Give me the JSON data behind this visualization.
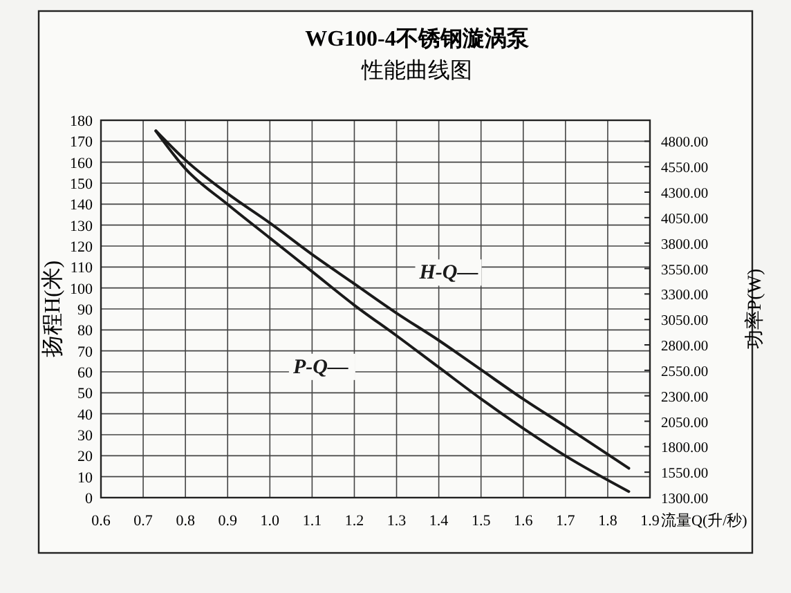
{
  "chart_data": {
    "type": "line",
    "title": "WG100-4不锈钢漩涡泵",
    "subtitle": "性能曲线图",
    "xlabel": "流量Q(升/秒)",
    "ylabel": "扬程H(米)",
    "y2label": "功率P(W)",
    "xlim": [
      0.6,
      1.9
    ],
    "xticks": [
      {
        "value": 0.6,
        "label": "0.6"
      },
      {
        "value": 0.7,
        "label": "0.7"
      },
      {
        "value": 0.8,
        "label": "0.8"
      },
      {
        "value": 0.9,
        "label": "0.9"
      },
      {
        "value": 1.0,
        "label": "1.0"
      },
      {
        "value": 1.1,
        "label": "1.1"
      },
      {
        "value": 1.2,
        "label": "1.2"
      },
      {
        "value": 1.3,
        "label": "1.3"
      },
      {
        "value": 1.4,
        "label": "1.4"
      },
      {
        "value": 1.5,
        "label": "1.5"
      },
      {
        "value": 1.6,
        "label": "1.6"
      },
      {
        "value": 1.7,
        "label": "1.7"
      },
      {
        "value": 1.8,
        "label": "1.8"
      },
      {
        "value": 1.9,
        "label": "1.9"
      }
    ],
    "ylim": [
      0,
      180
    ],
    "yticks": [
      0,
      10,
      20,
      30,
      40,
      50,
      60,
      70,
      80,
      90,
      100,
      110,
      120,
      130,
      140,
      150,
      160,
      170,
      180
    ],
    "y2lim": [
      1300,
      5006
    ],
    "y2ticks": [
      {
        "value": 1300,
        "label": "1300.00"
      },
      {
        "value": 1550,
        "label": "1550.00"
      },
      {
        "value": 1800,
        "label": "1800.00"
      },
      {
        "value": 2050,
        "label": "2050.00"
      },
      {
        "value": 2300,
        "label": "2300.00"
      },
      {
        "value": 2550,
        "label": "2550.00"
      },
      {
        "value": 2800,
        "label": "2800.00"
      },
      {
        "value": 3050,
        "label": "3050.00"
      },
      {
        "value": 3300,
        "label": "3300.00"
      },
      {
        "value": 3550,
        "label": "3550.00"
      },
      {
        "value": 3800,
        "label": "3800.00"
      },
      {
        "value": 4050,
        "label": "4050.00"
      },
      {
        "value": 4300,
        "label": "4300.00"
      },
      {
        "value": 4550,
        "label": "4550.00"
      },
      {
        "value": 4800,
        "label": "4800.00"
      }
    ],
    "grid": true,
    "marker": "none",
    "line_style": "solid",
    "series": [
      {
        "name": "H-Q—",
        "color": "#1a1a1a",
        "x": [
          0.73,
          0.8,
          0.9,
          1.0,
          1.1,
          1.2,
          1.3,
          1.4,
          1.5,
          1.6,
          1.7,
          1.85
        ],
        "values": [
          175,
          161,
          145,
          131,
          116,
          102,
          88,
          75,
          61,
          47,
          34,
          14
        ]
      },
      {
        "name": "P-Q—",
        "color": "#1a1a1a",
        "axis": "y2",
        "x": [
          0.73,
          0.8,
          0.9,
          1.0,
          1.1,
          1.2,
          1.3,
          1.4,
          1.5,
          1.6,
          1.7,
          1.85
        ],
        "values": [
          4900,
          4530,
          4180,
          3850,
          3520,
          3190,
          2890,
          2580,
          2270,
          1980,
          1710,
          1360
        ]
      }
    ]
  }
}
